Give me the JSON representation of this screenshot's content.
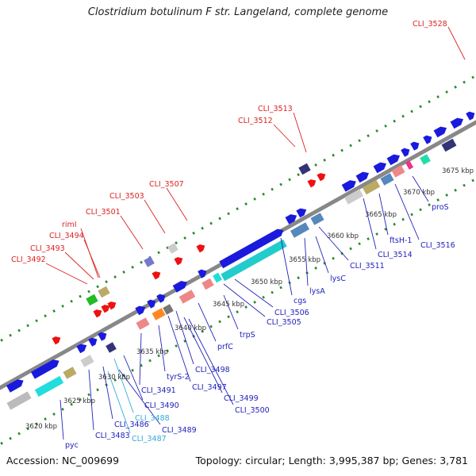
{
  "title": "Clostridium botulinum F str. Langeland, complete genome",
  "accession": "Accession: NC_009699",
  "summary": "Topology: circular; Length: 3,995,387 bp; Genes: 3,781",
  "colors": {
    "label_red": "#dd2222",
    "label_blue": "#2222bb",
    "label_cyan": "#33aadd",
    "backbone": "#888888",
    "cds_blue": "#1a1add",
    "dots_green": "#2a8a2a"
  },
  "tick_labels": [
    {
      "text": "3620 kbp"
    },
    {
      "text": "3625 kbp"
    },
    {
      "text": "3630 kbp"
    },
    {
      "text": "3635 kbp"
    },
    {
      "text": "3640 kbp"
    },
    {
      "text": "3645 kbp"
    },
    {
      "text": "3650 kbp"
    },
    {
      "text": "3655 kbp"
    },
    {
      "text": "3660 kbp"
    },
    {
      "text": "3665 kbp"
    },
    {
      "text": "3670 kbp"
    },
    {
      "text": "3675 kbp"
    }
  ],
  "top_labels": [
    {
      "text": "CLI_3528",
      "color": "red"
    },
    {
      "text": "CLI_3513",
      "color": "red"
    },
    {
      "text": "CLI_3512",
      "color": "red"
    },
    {
      "text": "CLI_3507",
      "color": "red"
    },
    {
      "text": "CLI_3503",
      "color": "red"
    },
    {
      "text": "CLI_3501",
      "color": "red"
    },
    {
      "text": "rimI",
      "color": "red"
    },
    {
      "text": "CLI_3494",
      "color": "red"
    },
    {
      "text": "CLI_3493",
      "color": "red"
    },
    {
      "text": "CLI_3492",
      "color": "red"
    }
  ],
  "bottom_labels": [
    {
      "text": "proS",
      "color": "blue"
    },
    {
      "text": "CLI_3516",
      "color": "blue"
    },
    {
      "text": "ftsH-1",
      "color": "blue"
    },
    {
      "text": "CLI_3514",
      "color": "blue"
    },
    {
      "text": "CLI_3511",
      "color": "blue"
    },
    {
      "text": "lysC",
      "color": "blue"
    },
    {
      "text": "lysA",
      "color": "blue"
    },
    {
      "text": "cgs",
      "color": "blue"
    },
    {
      "text": "CLI_3506",
      "color": "blue"
    },
    {
      "text": "CLI_3505",
      "color": "blue"
    },
    {
      "text": "trpS",
      "color": "blue"
    },
    {
      "text": "prfC",
      "color": "blue"
    },
    {
      "text": "CLI_3498",
      "color": "blue"
    },
    {
      "text": "CLI_3497",
      "color": "blue"
    },
    {
      "text": "CLI_3499",
      "color": "blue"
    },
    {
      "text": "CLI_3500",
      "color": "blue"
    },
    {
      "text": "tyrS-2",
      "color": "blue"
    },
    {
      "text": "CLI_3491",
      "color": "blue"
    },
    {
      "text": "CLI_3490",
      "color": "blue"
    },
    {
      "text": "CLI_3488",
      "color": "cyan"
    },
    {
      "text": "CLI_3489",
      "color": "blue"
    },
    {
      "text": "CLI_3486",
      "color": "blue"
    },
    {
      "text": "CLI_3487",
      "color": "cyan"
    },
    {
      "text": "CLI_3483",
      "color": "blue"
    },
    {
      "text": "pyc",
      "color": "blue"
    }
  ]
}
